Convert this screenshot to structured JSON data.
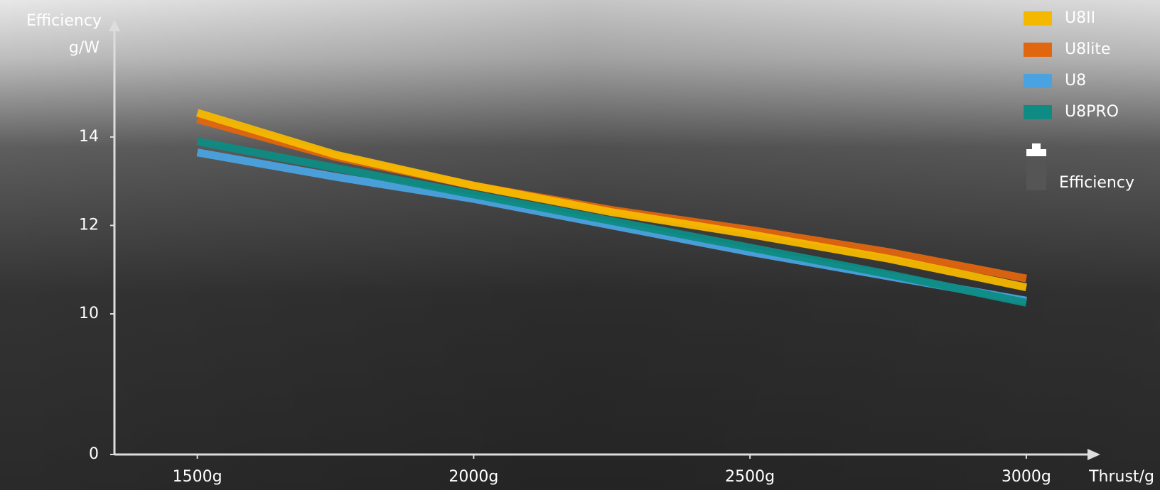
{
  "chart_data": {
    "type": "line",
    "y_label_lines": [
      "Efficiency",
      "g/W"
    ],
    "x_label": "Thrust/g",
    "x": [
      1500,
      1750,
      2000,
      2250,
      2500,
      2750,
      3000
    ],
    "xlim": [
      1350,
      3130
    ],
    "xticks": [
      {
        "value": 1500,
        "label": "1500g"
      },
      {
        "value": 2000,
        "label": "2000g"
      },
      {
        "value": 2500,
        "label": "2500g"
      },
      {
        "value": 3000,
        "label": "3000g"
      }
    ],
    "ylim": [
      0,
      16.6
    ],
    "yticks": [
      0,
      10,
      12,
      14
    ],
    "y_axis_break": true,
    "series": [
      {
        "name": "U8II",
        "color": "#f5b800",
        "values": [
          14.55,
          13.6,
          12.9,
          12.3,
          11.8,
          11.25,
          10.6
        ]
      },
      {
        "name": "U8lite",
        "color": "#e0660f",
        "values": [
          14.4,
          13.55,
          12.9,
          12.35,
          11.9,
          11.4,
          10.8
        ]
      },
      {
        "name": "U8",
        "color": "#4aa3e0",
        "values": [
          13.65,
          13.1,
          12.6,
          12.0,
          11.4,
          10.85,
          10.3
        ]
      },
      {
        "name": "U8PRO",
        "color": "#0e8c84",
        "values": [
          13.9,
          13.3,
          12.7,
          12.1,
          11.5,
          10.9,
          10.25
        ]
      }
    ],
    "legend_note": "Efficiency",
    "legend_position": "top-right"
  }
}
